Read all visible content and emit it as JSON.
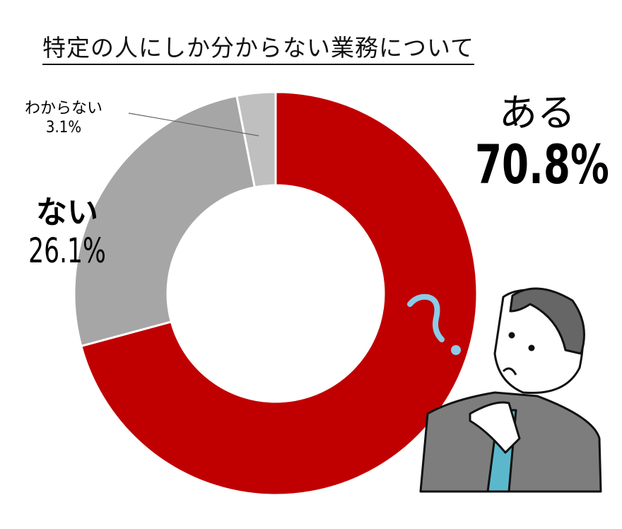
{
  "chart_data": {
    "type": "pie",
    "donut": true,
    "title": "特定の人にしか分からない業務について",
    "start": "top",
    "direction": "clockwise",
    "slices": [
      {
        "label": "ある",
        "value": 70.8,
        "display": "70.8%",
        "color": "#c00000"
      },
      {
        "label": "ない",
        "value": 26.1,
        "display": "26.1%",
        "color": "#a6a6a6"
      },
      {
        "label": "わからない",
        "value": 3.1,
        "display": "3.1%",
        "color": "#bfbfbf"
      }
    ]
  },
  "illustration": {
    "icon": "thinking-businessman-icon",
    "question_mark_color": "#8ccbe8"
  }
}
